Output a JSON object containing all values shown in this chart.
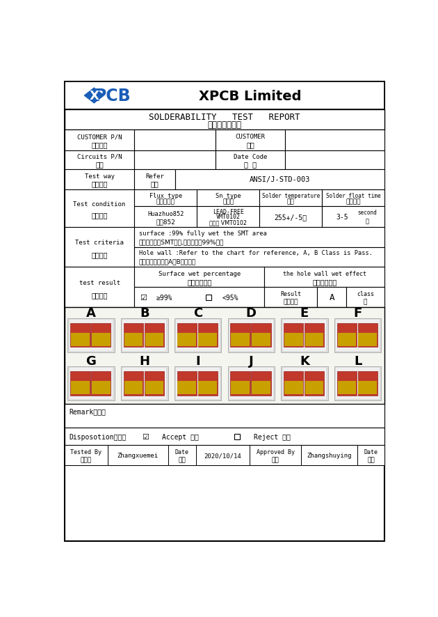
{
  "title": "XPCB Limited",
  "subtitle_en": "SOLDERABILITY   TEST   REPORT",
  "subtitle_cn": "可焊性测试报告",
  "bg_color": "#ffffff",
  "ansi": "ANSI/J-STD-003",
  "flux_val1": "Huazhuo852",
  "flux_val2": "华卓852",
  "sn_val1": "LEAD-FREE",
  "sn_val2": "VMT0102",
  "sn_val3": "无铅锡 VMT0102",
  "temp_val": "255+/-5",
  "float_val": "3-5",
  "float_unit_en": "second",
  "float_unit_cn": "秒",
  "criteria1_en": "surface :99% fully wet the SMT area",
  "criteria1_cn": "板面：主要指SMT焊盘,润湿面积为99%以上",
  "criteria2_en": "Hole wall :Refer to the chart for reference, A, B Class is Pass.",
  "criteria2_cn": "孔壁：参照下图示A、B级为合格",
  "surface_wet_en": "Surface wet percentage",
  "surface_wet_cn": "板面湿润面积",
  "hole_wall_en": "the hole wall wet effect",
  "hole_wall_cn": "孔壁上锡效果",
  "result_en": "Result",
  "result_cn": "图示效果",
  "result_val": "A",
  "class_en": "class",
  "class_cn": "级",
  "letters": [
    "A",
    "B",
    "C",
    "D",
    "E",
    "F",
    "G",
    "H",
    "I",
    "J",
    "K",
    "L"
  ],
  "tester_name": "Zhangxuemei",
  "test_date": "2020/10/14",
  "approver_name": "Zhangshuying",
  "logo_color": "#1a5eb8"
}
